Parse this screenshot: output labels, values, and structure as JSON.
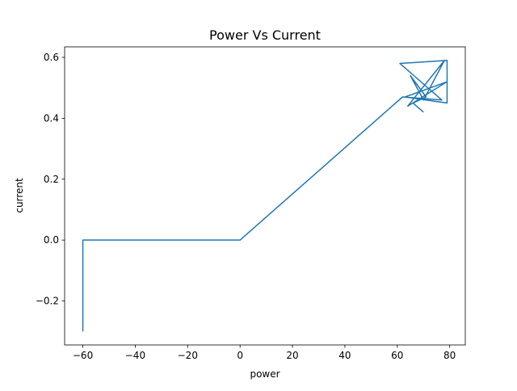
{
  "chart_data": {
    "type": "line",
    "title": "Power Vs Current",
    "xlabel": "power",
    "ylabel": "current",
    "xlim": [
      -66.95,
      85.95
    ],
    "ylim": [
      -0.3445,
      0.6345
    ],
    "xticks": [
      -60,
      -40,
      -20,
      0,
      20,
      40,
      60,
      80
    ],
    "xtick_labels": [
      "−60",
      "−40",
      "−20",
      "0",
      "20",
      "40",
      "60",
      "80"
    ],
    "yticks": [
      -0.2,
      0.0,
      0.2,
      0.4,
      0.6
    ],
    "ytick_labels": [
      "−0.2",
      "0.0",
      "0.2",
      "0.4",
      "0.6"
    ],
    "grid": false,
    "legend": "none",
    "series": [
      {
        "color": "#1f77b4",
        "points": [
          [
            -60,
            -0.3
          ],
          [
            -60,
            0.0
          ],
          [
            0,
            0.0
          ],
          [
            62,
            0.47
          ],
          [
            77,
            0.46
          ],
          [
            61,
            0.58
          ],
          [
            79,
            0.59
          ],
          [
            79,
            0.45
          ],
          [
            63,
            0.47
          ],
          [
            79,
            0.52
          ],
          [
            64,
            0.44
          ],
          [
            78,
            0.59
          ],
          [
            70,
            0.46
          ],
          [
            65,
            0.54
          ],
          [
            71,
            0.47
          ],
          [
            66,
            0.45
          ],
          [
            70,
            0.42
          ]
        ]
      }
    ]
  }
}
